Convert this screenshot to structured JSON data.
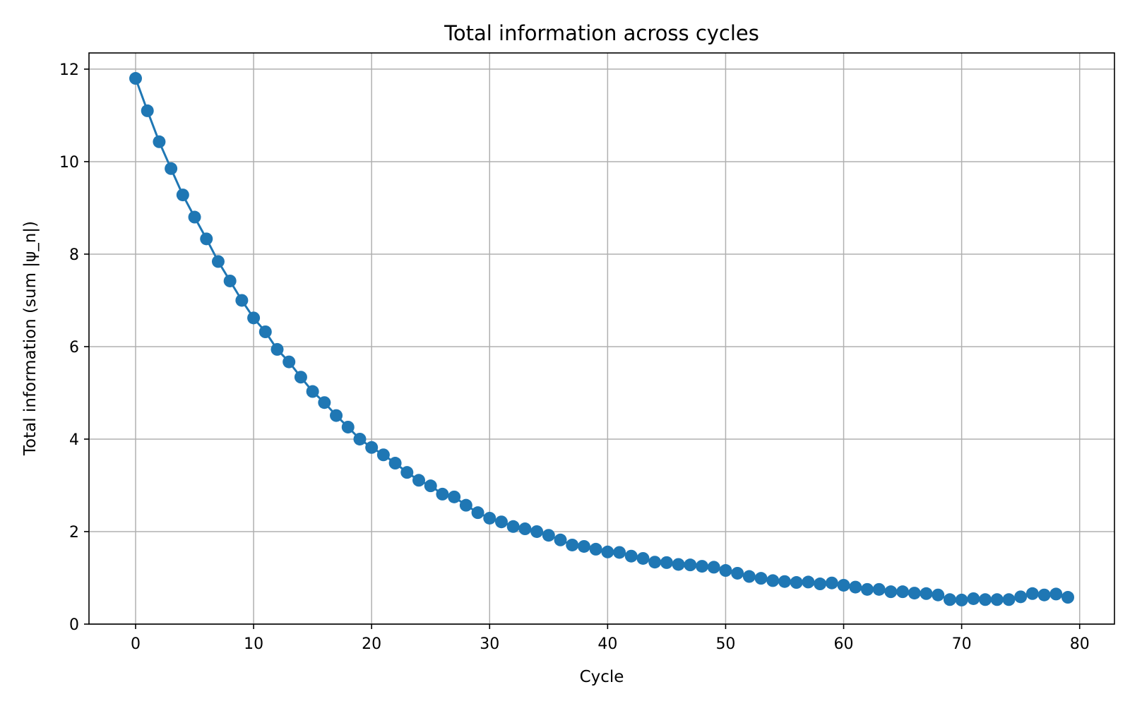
{
  "chart_data": {
    "type": "line",
    "title": "Total information across cycles",
    "xlabel": "Cycle",
    "ylabel": "Total information (sum |ψ_n|)",
    "xlim": [
      -3.95,
      82.95
    ],
    "ylim": [
      0,
      12.35
    ],
    "xticks": [
      0,
      10,
      20,
      30,
      40,
      50,
      60,
      70,
      80
    ],
    "yticks": [
      0,
      2,
      4,
      6,
      8,
      10,
      12
    ],
    "grid": true,
    "series": [
      {
        "color": "#1f77b4",
        "marker": "circle",
        "x": [
          0,
          1,
          2,
          3,
          4,
          5,
          6,
          7,
          8,
          9,
          10,
          11,
          12,
          13,
          14,
          15,
          16,
          17,
          18,
          19,
          20,
          21,
          22,
          23,
          24,
          25,
          26,
          27,
          28,
          29,
          30,
          31,
          32,
          33,
          34,
          35,
          36,
          37,
          38,
          39,
          40,
          41,
          42,
          43,
          44,
          45,
          46,
          47,
          48,
          49,
          50,
          51,
          52,
          53,
          54,
          55,
          56,
          57,
          58,
          59,
          60,
          61,
          62,
          63,
          64,
          65,
          66,
          67,
          68,
          69,
          70,
          71,
          72,
          73,
          74,
          75,
          76,
          77,
          78,
          79
        ],
        "values": [
          11.8,
          11.1,
          10.43,
          9.85,
          9.28,
          8.8,
          8.33,
          7.84,
          7.42,
          7.0,
          6.62,
          6.32,
          5.94,
          5.67,
          5.34,
          5.03,
          4.79,
          4.51,
          4.26,
          4.0,
          3.82,
          3.66,
          3.48,
          3.28,
          3.11,
          2.99,
          2.81,
          2.75,
          2.57,
          2.41,
          2.29,
          2.21,
          2.11,
          2.06,
          2.0,
          1.92,
          1.82,
          1.71,
          1.68,
          1.62,
          1.56,
          1.55,
          1.47,
          1.42,
          1.34,
          1.33,
          1.29,
          1.28,
          1.25,
          1.23,
          1.16,
          1.1,
          1.03,
          0.99,
          0.94,
          0.92,
          0.9,
          0.91,
          0.87,
          0.89,
          0.84,
          0.8,
          0.75,
          0.75,
          0.7,
          0.7,
          0.67,
          0.66,
          0.63,
          0.53,
          0.52,
          0.55,
          0.53,
          0.53,
          0.53,
          0.59,
          0.66,
          0.63,
          0.65,
          0.58
        ]
      }
    ]
  }
}
